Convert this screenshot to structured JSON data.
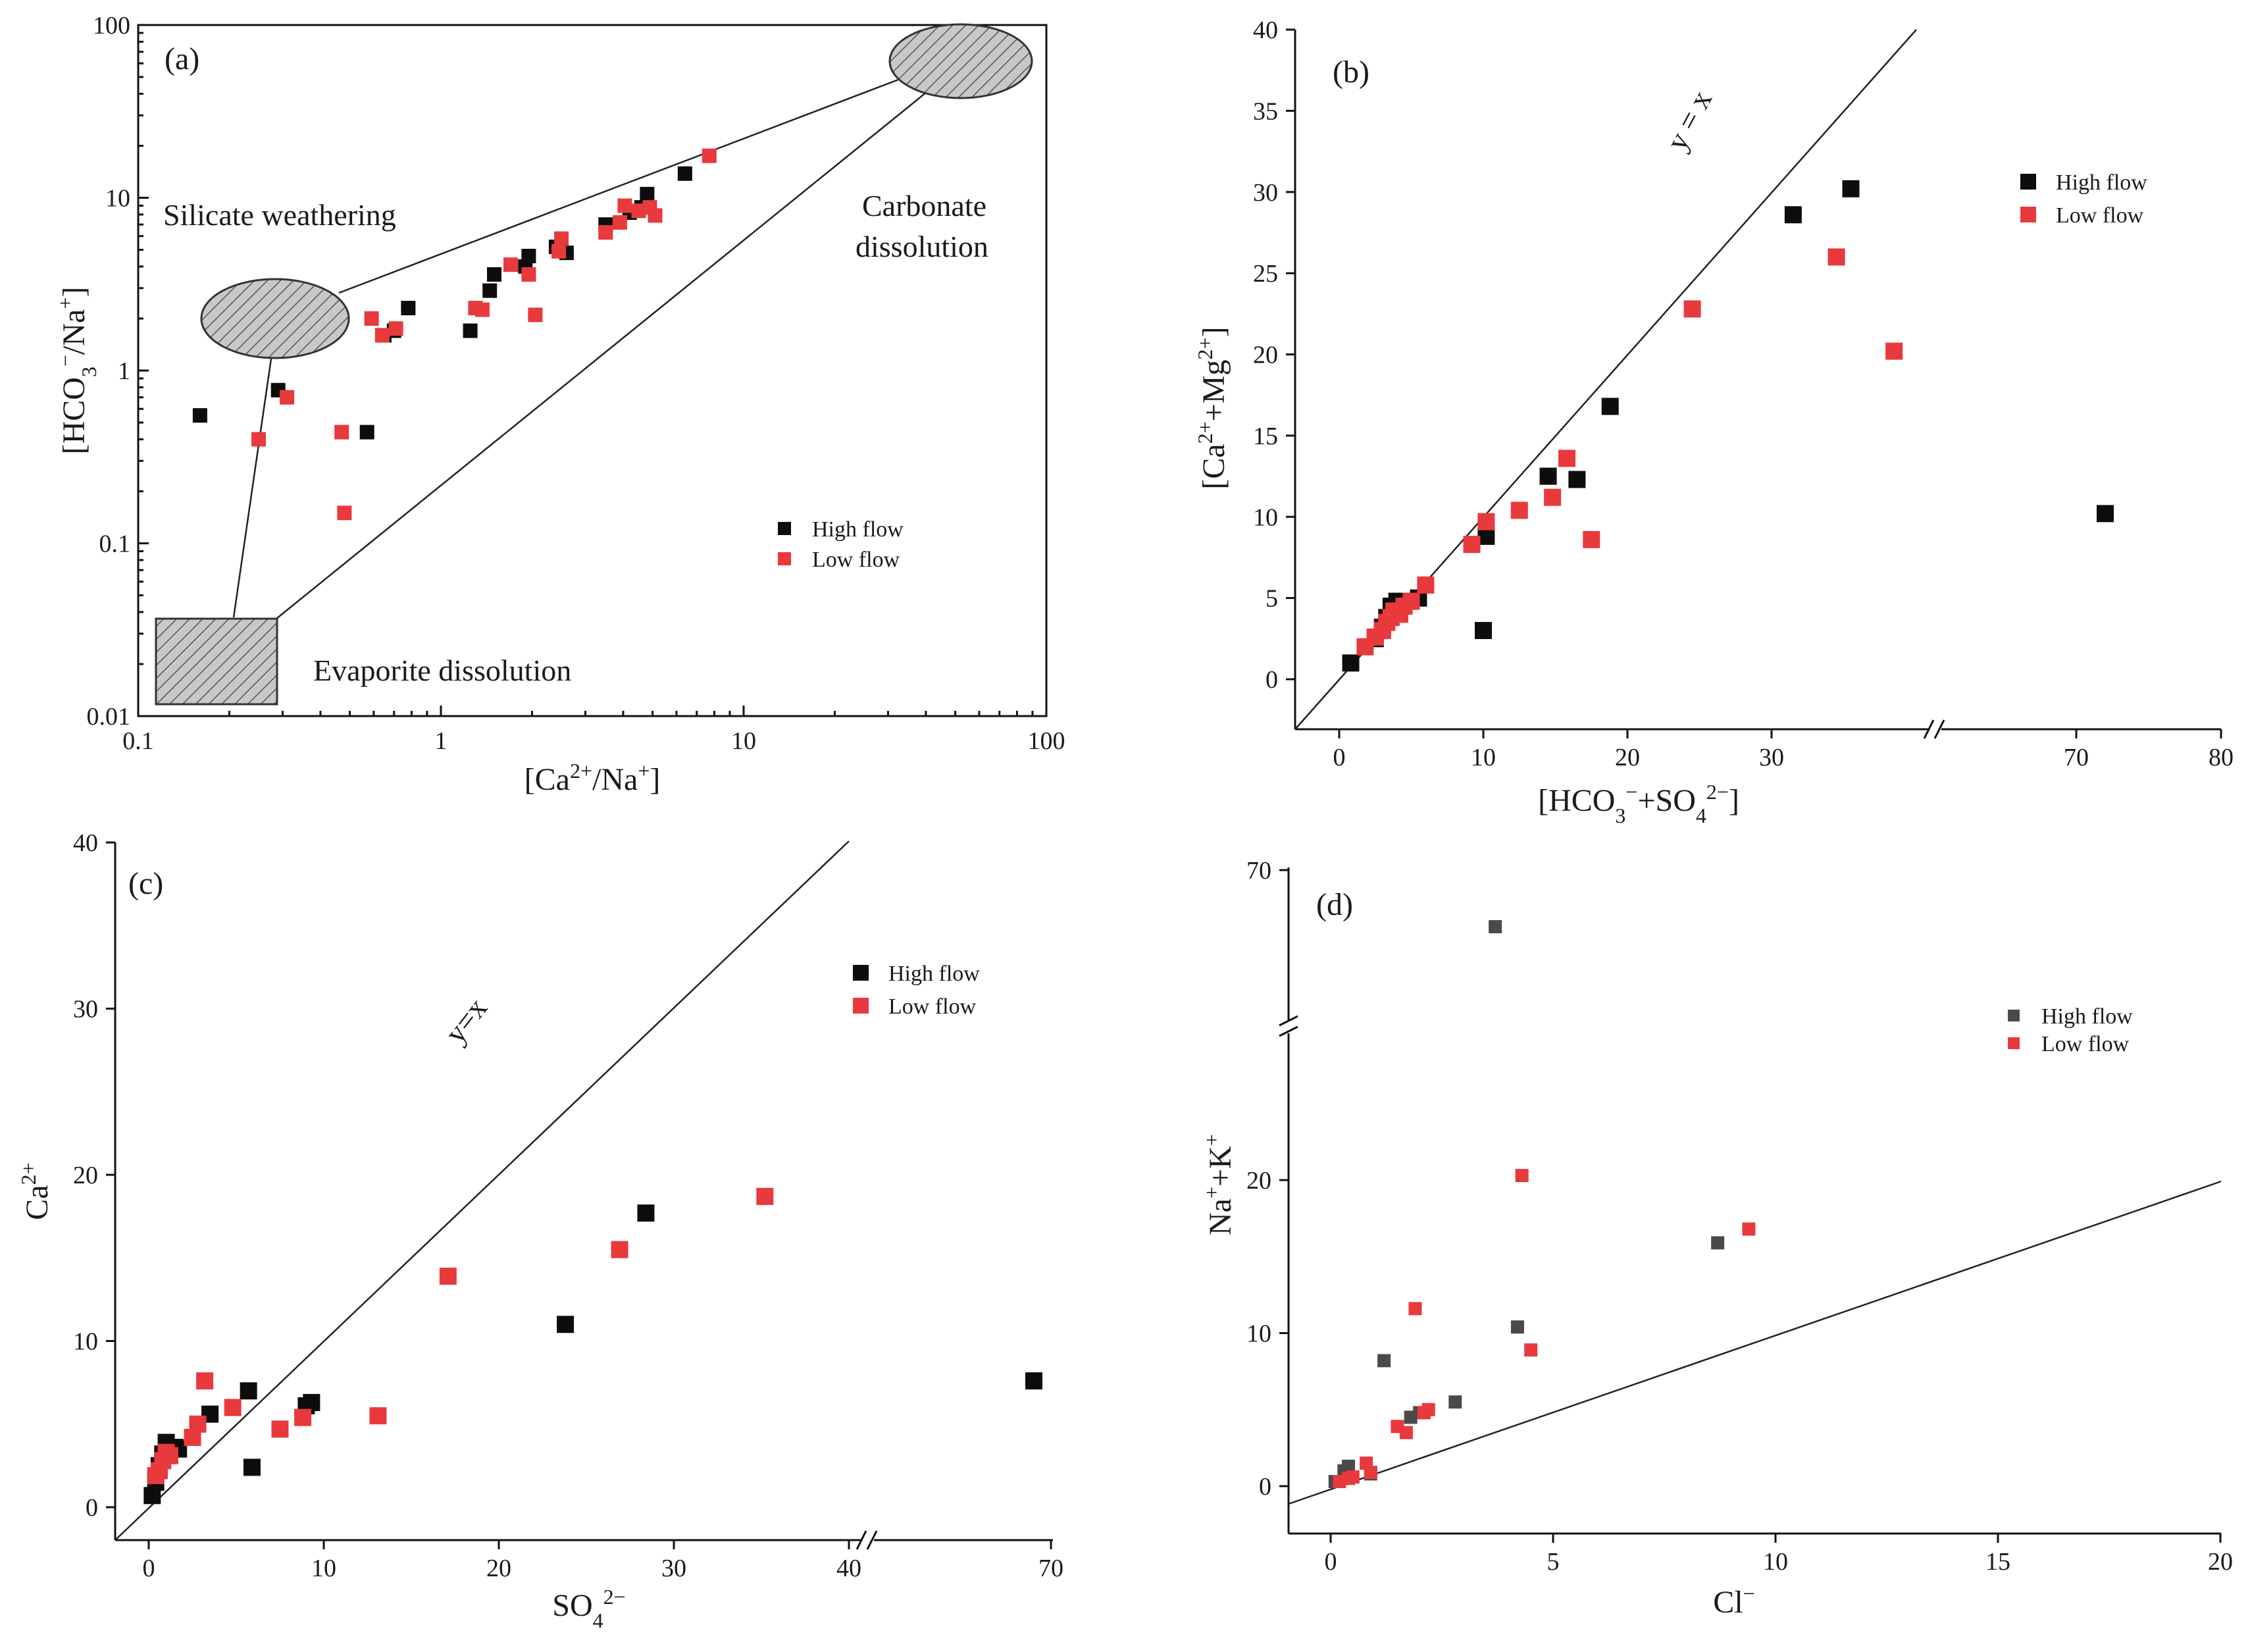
{
  "colors": {
    "high": "#0d0d0d",
    "low": "#e8393d",
    "high_d": "#4a4a4a",
    "ellipse": "#c8c8c8"
  },
  "chart_data": [
    {
      "panel": "(a)",
      "type": "scatter",
      "xscale": "log",
      "yscale": "log",
      "xlim": [
        0.1,
        100
      ],
      "ylim": [
        0.01,
        100
      ],
      "xticks": [
        "0.1",
        "1",
        "10",
        "100"
      ],
      "yticks": [
        "0.01",
        "0.1",
        "1",
        "10",
        "100"
      ],
      "xlabel": "[Ca2+/Na+]",
      "ylabel": "[HCO3−/Na+]",
      "annotations": [
        "Silicate weathering",
        "Carbonate",
        "dissolution",
        "Evaporite dissolution"
      ],
      "legend": {
        "position": "bottom-right",
        "entries": [
          "High flow",
          "Low flow"
        ]
      },
      "series": [
        {
          "name": "High flow",
          "points": [
            [
              0.16,
              0.55
            ],
            [
              0.29,
              0.77
            ],
            [
              0.57,
              0.44
            ],
            [
              0.65,
              1.6
            ],
            [
              0.7,
              1.7
            ],
            [
              0.78,
              2.3
            ],
            [
              1.25,
              1.7
            ],
            [
              1.45,
              2.9
            ],
            [
              1.5,
              3.6
            ],
            [
              1.9,
              4.0
            ],
            [
              1.95,
              4.6
            ],
            [
              2.4,
              5.2
            ],
            [
              2.6,
              4.8
            ],
            [
              3.5,
              7.0
            ],
            [
              4.2,
              8.2
            ],
            [
              4.6,
              8.8
            ],
            [
              4.8,
              10.5
            ],
            [
              6.4,
              13.8
            ]
          ]
        },
        {
          "name": "Low flow",
          "points": [
            [
              0.25,
              0.4
            ],
            [
              0.31,
              0.7
            ],
            [
              0.47,
              0.44
            ],
            [
              0.48,
              0.15
            ],
            [
              0.59,
              2.0
            ],
            [
              0.64,
              1.6
            ],
            [
              0.71,
              1.75
            ],
            [
              1.3,
              2.3
            ],
            [
              1.37,
              2.25
            ],
            [
              1.7,
              4.1
            ],
            [
              1.95,
              3.6
            ],
            [
              2.05,
              2.1
            ],
            [
              2.5,
              5.8
            ],
            [
              2.45,
              4.9
            ],
            [
              3.5,
              6.3
            ],
            [
              3.9,
              7.2
            ],
            [
              4.05,
              9.0
            ],
            [
              4.5,
              8.4
            ],
            [
              4.9,
              8.8
            ],
            [
              5.1,
              7.9
            ],
            [
              7.7,
              17.5
            ]
          ]
        }
      ]
    },
    {
      "panel": "(b)",
      "type": "scatter",
      "xlim": [
        0,
        80
      ],
      "ylim": [
        0,
        40
      ],
      "xticks": [
        "0",
        "10",
        "20",
        "30",
        "70",
        "80"
      ],
      "yticks": [
        "0",
        "5",
        "10",
        "15",
        "20",
        "25",
        "30",
        "35",
        "40"
      ],
      "xlabel": "[HCO3−+SO42−]",
      "ylabel": "[Ca2++Mg2+]",
      "reference_line": "y = x",
      "legend": {
        "position": "top-right",
        "entries": [
          "High flow",
          "Low flow"
        ]
      },
      "series": [
        {
          "name": "High flow",
          "points": [
            [
              0.8,
              1.0
            ],
            [
              2.5,
              2.5
            ],
            [
              3.0,
              3.2
            ],
            [
              3.3,
              3.8
            ],
            [
              3.6,
              4.5
            ],
            [
              4.0,
              4.8
            ],
            [
              5.5,
              5.0
            ],
            [
              10.0,
              3.0
            ],
            [
              10.2,
              8.8
            ],
            [
              14.5,
              12.5
            ],
            [
              16.5,
              12.3
            ],
            [
              18.8,
              16.8
            ],
            [
              31.5,
              28.6
            ],
            [
              35.5,
              30.2
            ],
            [
              72.0,
              10.2
            ]
          ]
        },
        {
          "name": "Low flow",
          "points": [
            [
              1.8,
              2.0
            ],
            [
              2.5,
              2.6
            ],
            [
              3.0,
              3.0
            ],
            [
              3.3,
              3.5
            ],
            [
              3.6,
              3.8
            ],
            [
              3.8,
              4.2
            ],
            [
              4.2,
              4.0
            ],
            [
              4.5,
              4.5
            ],
            [
              5.0,
              4.8
            ],
            [
              6.0,
              5.8
            ],
            [
              9.2,
              8.3
            ],
            [
              10.2,
              9.7
            ],
            [
              12.5,
              10.4
            ],
            [
              14.8,
              11.2
            ],
            [
              15.8,
              13.6
            ],
            [
              17.5,
              8.6
            ],
            [
              24.5,
              22.8
            ],
            [
              34.5,
              26.0
            ],
            [
              38.5,
              20.2
            ]
          ]
        }
      ]
    },
    {
      "panel": "(c)",
      "type": "scatter",
      "xlim": [
        0,
        70
      ],
      "ylim": [
        0,
        40
      ],
      "xticks": [
        "0",
        "10",
        "20",
        "30",
        "40",
        "70"
      ],
      "yticks": [
        "0",
        "10",
        "20",
        "30",
        "40"
      ],
      "xlabel": "SO42−",
      "ylabel": "Ca2+",
      "reference_line": "y=x",
      "legend": {
        "position": "top-right",
        "entries": [
          "High flow",
          "Low flow"
        ]
      },
      "series": [
        {
          "name": "High flow",
          "points": [
            [
              0.2,
              0.7
            ],
            [
              0.4,
              1.5
            ],
            [
              0.6,
              2.5
            ],
            [
              0.8,
              3.2
            ],
            [
              1.0,
              3.9
            ],
            [
              1.5,
              3.6
            ],
            [
              1.7,
              3.5
            ],
            [
              3.5,
              5.6
            ],
            [
              5.7,
              7.0
            ],
            [
              5.9,
              2.4
            ],
            [
              9.0,
              6.1
            ],
            [
              9.3,
              6.3
            ],
            [
              23.8,
              11.0
            ],
            [
              28.4,
              17.7
            ],
            [
              67.2,
              7.6
            ]
          ]
        },
        {
          "name": "Low flow",
          "points": [
            [
              0.4,
              1.9
            ],
            [
              0.6,
              2.2
            ],
            [
              0.8,
              2.8
            ],
            [
              1.0,
              3.3
            ],
            [
              1.2,
              3.1
            ],
            [
              2.5,
              4.2
            ],
            [
              2.8,
              5.0
            ],
            [
              3.2,
              7.6
            ],
            [
              4.8,
              6.0
            ],
            [
              7.5,
              4.7
            ],
            [
              8.8,
              5.4
            ],
            [
              13.1,
              5.5
            ],
            [
              17.1,
              13.9
            ],
            [
              26.9,
              15.5
            ],
            [
              35.2,
              18.7
            ]
          ]
        }
      ]
    },
    {
      "panel": "(d)",
      "type": "scatter",
      "xlim": [
        0,
        20
      ],
      "ylim": [
        0,
        70
      ],
      "xticks": [
        "0",
        "5",
        "10",
        "15",
        "20"
      ],
      "yticks": [
        "0",
        "10",
        "20",
        "70"
      ],
      "xlabel": "Cl−",
      "ylabel": "Na++K+",
      "legend": {
        "position": "top-right",
        "entries": [
          "High flow",
          "Low flow"
        ]
      },
      "series": [
        {
          "name": "High flow",
          "points": [
            [
              0.1,
              0.3
            ],
            [
              0.3,
              1.0
            ],
            [
              0.4,
              1.3
            ],
            [
              0.9,
              0.8
            ],
            [
              1.2,
              8.2
            ],
            [
              1.8,
              4.5
            ],
            [
              2.0,
              4.8
            ],
            [
              2.8,
              5.5
            ],
            [
              4.2,
              10.4
            ],
            [
              8.7,
              15.9
            ],
            [
              3.7,
              67.5
            ]
          ]
        },
        {
          "name": "Low flow",
          "points": [
            [
              0.2,
              0.3
            ],
            [
              0.4,
              0.5
            ],
            [
              0.5,
              0.6
            ],
            [
              0.8,
              1.5
            ],
            [
              0.9,
              0.9
            ],
            [
              1.5,
              3.9
            ],
            [
              1.7,
              3.5
            ],
            [
              1.9,
              11.6
            ],
            [
              2.1,
              4.8
            ],
            [
              2.2,
              5.0
            ],
            [
              4.3,
              20.3
            ],
            [
              4.5,
              8.9
            ],
            [
              9.4,
              16.8
            ]
          ]
        }
      ]
    }
  ]
}
